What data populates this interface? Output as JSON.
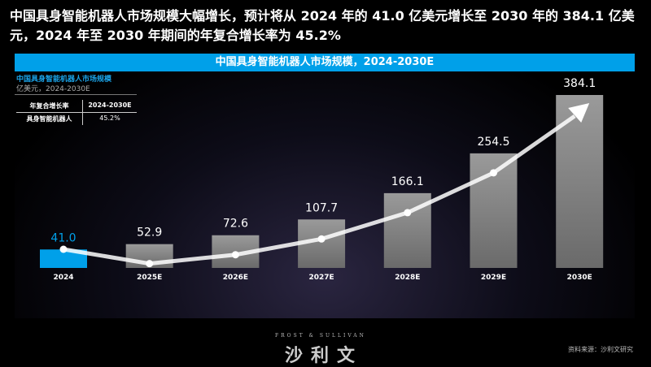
{
  "headline": "中国具身智能机器人市场规模大幅增长，预计将从 2024 年的 41.0 亿美元增长至 2030 年的 384.1 亿美元，2024 年至 2030 年期间的年复合增长率为 45.2%",
  "chart_data": {
    "type": "bar",
    "title": "中国具身智能机器人市场规模，2024-2030E",
    "subtitle": "中国具身智能机器人市场规模",
    "unit": "亿美元，2024-2030E",
    "categories": [
      "2024",
      "2025E",
      "2026E",
      "2027E",
      "2028E",
      "2029E",
      "2030E"
    ],
    "values": [
      41.0,
      52.9,
      72.6,
      107.7,
      166.1,
      254.5,
      384.1
    ],
    "labels": [
      "41.0",
      "52.9",
      "72.6",
      "107.7",
      "166.1",
      "254.5",
      "384.1"
    ],
    "colors": {
      "highlight": "#00a0e9",
      "bar": "#808080",
      "trend": "#ffffff"
    },
    "trend_arrow": true,
    "ylim": [
      0,
      384.1
    ]
  },
  "cagr_table": {
    "headers": [
      "年复合增长率",
      "2024-2030E"
    ],
    "row": [
      "具身智能机器人",
      "45.2%"
    ]
  },
  "logo": {
    "en": "FROST & SULLIVAN",
    "cn": "沙利文"
  },
  "source": "资料来源：沙利文研究"
}
